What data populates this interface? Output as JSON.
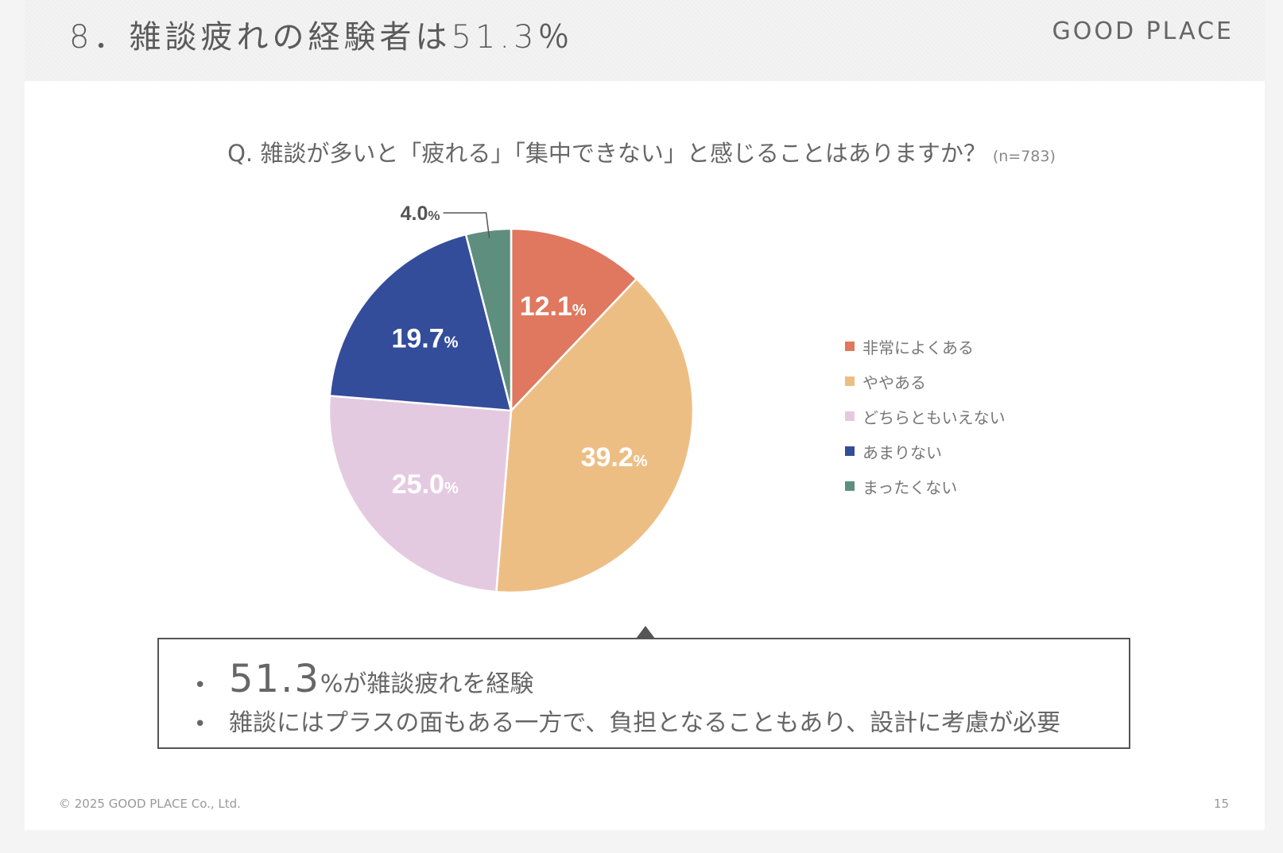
{
  "header": {
    "title": "8．雑談疲れの経験者は51.3％",
    "brand": "GOOD PLACE"
  },
  "question": {
    "text": "Q. 雑談が多いと「疲れる」「集中できない」と感じることはありますか？",
    "n_label": "(n=783)"
  },
  "chart_data": {
    "type": "pie",
    "unit": "%",
    "categories": [
      "非常によくある",
      "ややある",
      "どちらともいえない",
      "あまりない",
      "まったくない"
    ],
    "values": [
      12.1,
      39.2,
      25.0,
      19.7,
      4.0
    ],
    "value_labels": [
      "12.1",
      "39.2",
      "25.0",
      "19.7",
      "4.0"
    ],
    "colors": [
      "#df785f",
      "#edbe84",
      "#e4cae0",
      "#334d9a",
      "#5e8f7e"
    ],
    "start_angle_deg": 0,
    "direction": "clockwise",
    "legend_position": "right",
    "label_color_inside": "#ffffff",
    "label_color_outside": "#555555"
  },
  "callout": {
    "bullet": "•",
    "item1_big": "51.3",
    "item1_rest": "%が雑談疲れを経験",
    "item2": "雑談にはプラスの面もある一方で、負担となることもあり、設計に考慮が必要"
  },
  "footer": {
    "copyright": "© 2025 GOOD PLACE Co., Ltd.",
    "page": "15"
  }
}
